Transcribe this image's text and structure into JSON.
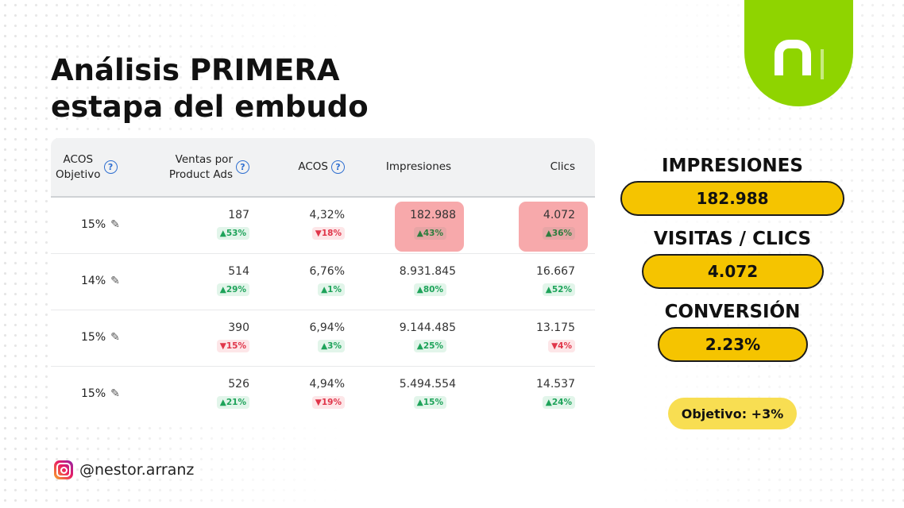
{
  "title": {
    "line1": "Análisis PRIMERA",
    "line2": "estapa del embudo"
  },
  "table": {
    "headers": {
      "acos_obj": "ACOS Objetivo",
      "acos_obj_line1": "ACOS",
      "acos_obj_line2": "Objetivo",
      "ventas_line1": "Ventas por",
      "ventas_line2": "Product Ads",
      "acos": "ACOS",
      "impresiones": "Impresiones",
      "clics": "Clics",
      "help_glyph": "?"
    },
    "rows": [
      {
        "acos_obj": "15%",
        "ventas": "187",
        "ventas_badge": "▲53%",
        "acos": "4,32%",
        "acos_badge": "▼18%",
        "impresiones": "182.988",
        "impresiones_badge": "▲43%",
        "clics": "4.072",
        "clics_badge": "▲36%"
      },
      {
        "acos_obj": "14%",
        "ventas": "514",
        "ventas_badge": "▲29%",
        "acos": "6,76%",
        "acos_badge": "▲1%",
        "impresiones": "8.931.845",
        "impresiones_badge": "▲80%",
        "clics": "16.667",
        "clics_badge": "▲52%"
      },
      {
        "acos_obj": "15%",
        "ventas": "390",
        "ventas_badge": "▼15%",
        "acos": "6,94%",
        "acos_badge": "▲3%",
        "impresiones": "9.144.485",
        "impresiones_badge": "▲25%",
        "clics": "13.175",
        "clics_badge": "▼4%"
      },
      {
        "acos_obj": "15%",
        "ventas": "526",
        "ventas_badge": "▲21%",
        "acos": "4,94%",
        "acos_badge": "▼19%",
        "impresiones": "5.494.554",
        "impresiones_badge": "▲15%",
        "clics": "14.537",
        "clics_badge": "▲24%"
      }
    ],
    "pencil_glyph": "✎"
  },
  "metrics": {
    "impresiones_label": "IMPRESIONES",
    "impresiones_value": "182.988",
    "visitas_label": "VISITAS / CLICS",
    "visitas_value": "4.072",
    "conversion_label": "CONVERSIÓN",
    "conversion_value": "2.23%",
    "objetivo": "Objetivo: +3%"
  },
  "footer": {
    "handle": "@nestor.arranz",
    "icon": "instagram-icon"
  },
  "colors": {
    "brand_green": "#8fd400",
    "pill_yellow": "#f5c400",
    "badge_up": "#1ea35a",
    "badge_down": "#e0364a",
    "highlight": "#f7a9ab"
  }
}
